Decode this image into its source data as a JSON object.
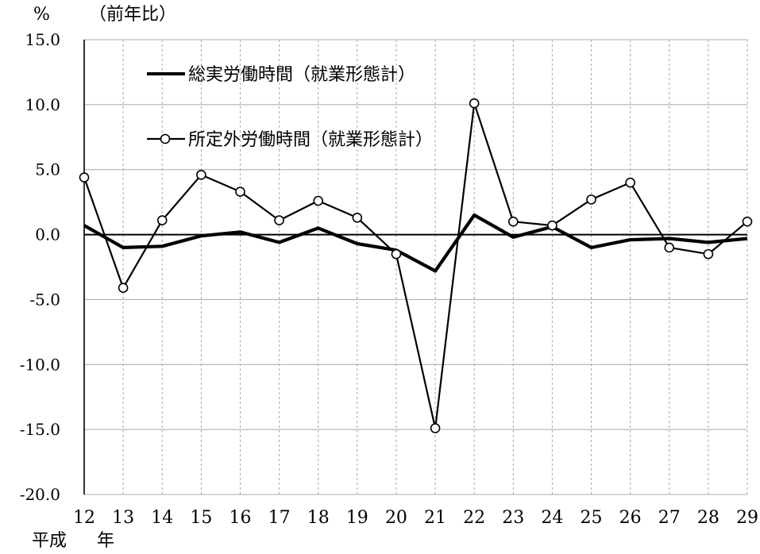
{
  "chart_data": {
    "type": "line",
    "y_unit": "%",
    "y_note": "（前年比）",
    "x_caption_era": "平成",
    "x_caption_unit": "年",
    "categories": [
      "12",
      "13",
      "14",
      "15",
      "16",
      "17",
      "18",
      "19",
      "20",
      "21",
      "22",
      "23",
      "24",
      "25",
      "26",
      "27",
      "28",
      "29"
    ],
    "ylim": [
      -20,
      15
    ],
    "yticks": [
      15,
      10,
      5,
      0,
      -5,
      -10,
      -15,
      -20
    ],
    "ytick_labels": [
      "15.0",
      "10.0",
      "5.0",
      "0.0",
      "-5.0",
      "-10.0",
      "-15.0",
      "-20.0"
    ],
    "grid": true,
    "legend_position": "top-left",
    "series": [
      {
        "name": "総実労働時間（就業形態計）",
        "marker": "none",
        "values": [
          0.7,
          -1.0,
          -0.9,
          -0.1,
          0.2,
          -0.6,
          0.5,
          -0.7,
          -1.2,
          -2.8,
          1.5,
          -0.2,
          0.6,
          -1.0,
          -0.4,
          -0.3,
          -0.6,
          -0.3
        ]
      },
      {
        "name": "所定外労働時間（就業形態計）",
        "marker": "circle",
        "values": [
          4.4,
          -4.1,
          1.1,
          4.6,
          3.3,
          1.1,
          2.6,
          1.3,
          -1.5,
          -14.9,
          10.1,
          1.0,
          0.7,
          2.7,
          4.0,
          -1.0,
          -1.5,
          1.0
        ]
      }
    ]
  }
}
